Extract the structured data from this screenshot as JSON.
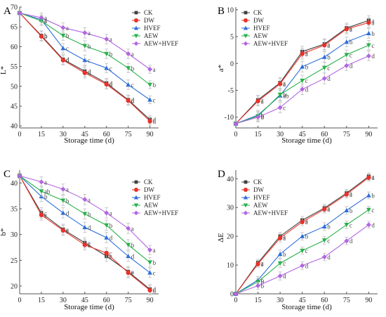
{
  "figure": {
    "legend_labels": [
      "CK",
      "DW",
      "HVEF",
      "AEW",
      "AEW+HVEF"
    ],
    "series_colors": [
      "#404040",
      "#e8322a",
      "#2e6fd8",
      "#27b24a",
      "#b266e0"
    ],
    "marker_shapes": [
      "square",
      "circle",
      "triangle-up",
      "triangle-down",
      "diamond"
    ]
  },
  "chart_data": [
    {
      "type": "line",
      "panel_label": "A",
      "x": [
        0,
        15,
        30,
        45,
        60,
        75,
        90
      ],
      "xlabel": "Storage time (d)",
      "ylabel": "L*",
      "xlim": [
        0,
        96
      ],
      "ylim": [
        39.5,
        70
      ],
      "yticks": [
        40,
        45,
        50,
        55,
        60,
        65,
        70
      ],
      "xticks": [
        0,
        15,
        30,
        45,
        60,
        75,
        90
      ],
      "legend_position": "top-right",
      "series": [
        {
          "name": "CK",
          "values": [
            68.5,
            62.8,
            56.8,
            53.8,
            50.8,
            46.6,
            41.6
          ],
          "letters": [
            "",
            "b",
            "d",
            "d",
            "d",
            "d",
            "d"
          ],
          "errors": [
            0.5,
            1.2,
            1.2,
            1.3,
            1.2,
            1.2,
            1.0
          ]
        },
        {
          "name": "DW",
          "values": [
            68.5,
            62.6,
            56.6,
            53.4,
            50.5,
            46.4,
            41.2
          ],
          "letters": [
            "",
            "b",
            "d",
            "d",
            "d",
            "d",
            "d"
          ],
          "errors": [
            0.5,
            1.2,
            1.2,
            1.3,
            1.2,
            1.2,
            1.0
          ]
        },
        {
          "name": "HVEF",
          "values": [
            68.5,
            66.8,
            59.6,
            56.6,
            54.6,
            50.4,
            46.6
          ],
          "letters": [
            "",
            "a",
            "c",
            "c",
            "c",
            "c",
            "c"
          ],
          "errors": [
            0.5,
            1.2,
            1.2,
            1.3,
            1.2,
            1.2,
            1.0
          ]
        },
        {
          "name": "AEW",
          "values": [
            68.5,
            66.5,
            62.8,
            60.2,
            58.2,
            54.6,
            50.4
          ],
          "letters": [
            "",
            "a",
            "b",
            "b",
            "b",
            "b",
            "b"
          ],
          "errors": [
            0.5,
            1.2,
            1.2,
            1.3,
            1.2,
            1.2,
            1.0
          ]
        },
        {
          "name": "AEW+HVEF",
          "values": [
            68.5,
            67.3,
            64.8,
            63.5,
            61.9,
            58.2,
            54.3
          ],
          "letters": [
            "",
            "a",
            "a",
            "a",
            "a",
            "a",
            "a"
          ],
          "errors": [
            0.5,
            1.2,
            1.2,
            1.3,
            1.2,
            1.2,
            1.0
          ]
        }
      ]
    },
    {
      "type": "line",
      "panel_label": "B",
      "x": [
        0,
        15,
        30,
        45,
        60,
        75,
        90
      ],
      "xlabel": "Storage time (d)",
      "ylabel": "a*",
      "xlim": [
        0,
        96
      ],
      "ylim": [
        -12,
        10.5
      ],
      "yticks": [
        -10,
        -5,
        0,
        5,
        10
      ],
      "xticks": [
        0,
        15,
        30,
        45,
        60,
        75,
        90
      ],
      "legend_position": "top-left",
      "series": [
        {
          "name": "CK",
          "values": [
            -11.2,
            -6.8,
            -3.6,
            2.2,
            3.6,
            6.6,
            8.0
          ],
          "letters": [
            "",
            "a",
            "a",
            "a",
            "a",
            "a",
            "a"
          ],
          "errors": [
            0.4,
            0.9,
            1.0,
            1.0,
            1.0,
            0.9,
            0.9
          ]
        },
        {
          "name": "DW",
          "values": [
            -11.2,
            -7.0,
            -3.8,
            1.8,
            3.4,
            6.4,
            7.6
          ],
          "letters": [
            "",
            "a",
            "a",
            "a",
            "a",
            "a",
            "a"
          ],
          "errors": [
            0.4,
            0.9,
            1.0,
            1.0,
            1.0,
            0.9,
            0.9
          ]
        },
        {
          "name": "HVEF",
          "values": [
            -11.2,
            -9.6,
            -6.0,
            -0.6,
            1.2,
            4.0,
            5.6
          ],
          "letters": [
            "",
            "b",
            "ab",
            "b",
            "b",
            "b",
            "b"
          ],
          "errors": [
            0.4,
            0.9,
            1.0,
            1.0,
            1.0,
            0.9,
            0.9
          ]
        },
        {
          "name": "AEW",
          "values": [
            -11.2,
            -9.8,
            -5.8,
            -3.2,
            -0.8,
            1.6,
            3.4
          ],
          "letters": [
            "",
            "b",
            "b",
            "c",
            "c",
            "c",
            "c"
          ],
          "errors": [
            0.4,
            0.9,
            1.0,
            1.0,
            1.0,
            0.9,
            0.9
          ]
        },
        {
          "name": "AEW+HVEF",
          "values": [
            -11.2,
            -10.0,
            -8.2,
            -4.8,
            -2.8,
            -0.4,
            1.4
          ],
          "letters": [
            "",
            "b",
            "c",
            "d",
            "d",
            "d",
            "d"
          ],
          "errors": [
            0.4,
            0.9,
            1.0,
            1.0,
            1.0,
            0.9,
            0.9
          ]
        }
      ]
    },
    {
      "type": "line",
      "panel_label": "C",
      "x": [
        0,
        15,
        30,
        45,
        60,
        75,
        90
      ],
      "xlabel": "Storage time (d)",
      "ylabel": "b*",
      "xlim": [
        0,
        96
      ],
      "ylim": [
        18.5,
        42.5
      ],
      "yticks": [
        20,
        25,
        30,
        35,
        40
      ],
      "xticks": [
        0,
        15,
        30,
        45,
        60,
        75,
        90
      ],
      "legend_position": "top-right",
      "series": [
        {
          "name": "CK",
          "values": [
            41.4,
            34.2,
            31.0,
            28.4,
            25.8,
            22.8,
            19.4
          ],
          "letters": [
            "",
            "c",
            "e",
            "e",
            "e",
            "e",
            "d"
          ],
          "errors": [
            0.5,
            1.0,
            1.0,
            1.0,
            1.0,
            1.0,
            0.9
          ]
        },
        {
          "name": "DW",
          "values": [
            41.4,
            33.8,
            30.8,
            28.0,
            26.4,
            22.6,
            19.2
          ],
          "letters": [
            "",
            "c",
            "e",
            "e",
            "c",
            "e",
            "d"
          ],
          "errors": [
            0.5,
            1.0,
            1.0,
            1.0,
            1.0,
            1.0,
            0.9
          ]
        },
        {
          "name": "HVEF",
          "values": [
            41.4,
            37.4,
            34.2,
            31.4,
            29.4,
            25.8,
            22.6
          ],
          "letters": [
            "",
            "b",
            "d",
            "d",
            "d",
            "d",
            "c"
          ],
          "errors": [
            0.5,
            1.0,
            1.0,
            1.0,
            1.0,
            1.0,
            0.9
          ]
        },
        {
          "name": "AEW",
          "values": [
            41.4,
            38.4,
            36.6,
            34.0,
            31.8,
            28.0,
            24.6
          ],
          "letters": [
            "",
            "ab",
            "b",
            "b",
            "b",
            "b",
            "b"
          ],
          "errors": [
            0.5,
            1.0,
            1.0,
            1.0,
            1.0,
            1.0,
            0.9
          ]
        },
        {
          "name": "AEW+HVEF",
          "values": [
            41.4,
            40.2,
            38.8,
            36.8,
            34.2,
            31.2,
            27.0
          ],
          "letters": [
            "",
            "a",
            "a",
            "a",
            "a",
            "a",
            "a"
          ],
          "errors": [
            0.5,
            1.0,
            1.0,
            1.0,
            1.0,
            1.0,
            0.9
          ]
        }
      ]
    },
    {
      "type": "line",
      "panel_label": "D",
      "x": [
        0,
        15,
        30,
        45,
        60,
        75,
        90
      ],
      "xlabel": "Storage time (d)",
      "ylabel": "ΔE",
      "xlim": [
        0,
        96
      ],
      "ylim": [
        0,
        43
      ],
      "yticks": [
        0,
        10,
        20,
        30,
        40
      ],
      "xticks": [
        0,
        15,
        30,
        45,
        60,
        75,
        90
      ],
      "legend_position": "top-left",
      "series": [
        {
          "name": "CK",
          "values": [
            0,
            10.8,
            20.0,
            25.6,
            29.8,
            35.0,
            40.8
          ],
          "letters": [
            "",
            "a",
            "a",
            "a",
            "a",
            "a",
            "a"
          ],
          "errors": [
            0,
            1.2,
            1.4,
            1.3,
            1.3,
            1.3,
            1.2
          ]
        },
        {
          "name": "DW",
          "values": [
            0,
            10.4,
            19.4,
            25.0,
            29.4,
            34.6,
            40.4
          ],
          "letters": [
            "",
            "a",
            "a",
            "a",
            "a",
            "a",
            "a"
          ],
          "errors": [
            0,
            1.2,
            1.4,
            1.3,
            1.3,
            1.3,
            1.2
          ]
        },
        {
          "name": "HVEF",
          "values": [
            0,
            4.8,
            13.8,
            20.0,
            23.4,
            29.0,
            34.2
          ],
          "letters": [
            "",
            "b",
            "b",
            "b",
            "b",
            "b",
            "b"
          ],
          "errors": [
            0,
            1.2,
            1.4,
            1.3,
            1.3,
            1.3,
            1.2
          ]
        },
        {
          "name": "AEW",
          "values": [
            0,
            4.2,
            10.6,
            15.0,
            18.6,
            24.0,
            29.2
          ],
          "letters": [
            "",
            "b",
            "c",
            "c",
            "c",
            "c",
            "c"
          ],
          "errors": [
            0,
            1.2,
            1.4,
            1.3,
            1.3,
            1.3,
            1.2
          ]
        },
        {
          "name": "AEW+HVEF",
          "values": [
            0,
            2.8,
            6.2,
            9.8,
            12.8,
            18.4,
            24.0
          ],
          "letters": [
            "",
            "b",
            "d",
            "d",
            "d",
            "d",
            "d"
          ],
          "errors": [
            0,
            1.2,
            1.4,
            1.3,
            1.3,
            1.3,
            1.2
          ]
        }
      ]
    }
  ]
}
